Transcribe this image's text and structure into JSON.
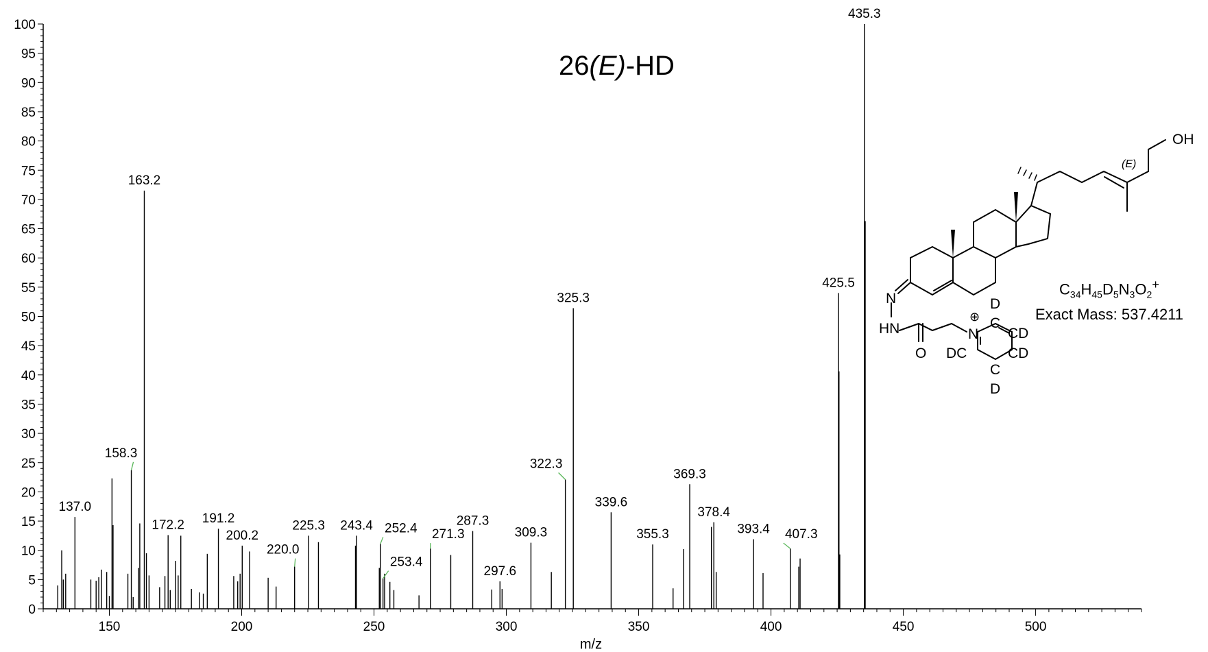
{
  "chart_data": {
    "type": "bar",
    "title_parts": {
      "prefix": "26",
      "italic": "(E)",
      "suffix": "-HD"
    },
    "xlabel": "m/z",
    "ylabel": "",
    "xlim": [
      125,
      540
    ],
    "ylim": [
      0,
      100
    ],
    "x_ticks": [
      150,
      200,
      250,
      300,
      350,
      400,
      450,
      500
    ],
    "y_ticks": [
      0,
      5,
      10,
      15,
      20,
      25,
      30,
      35,
      40,
      45,
      50,
      55,
      60,
      65,
      70,
      75,
      80,
      85,
      90,
      95,
      100
    ],
    "grid": false,
    "peaks": [
      {
        "x": 130.5,
        "y": 4
      },
      {
        "x": 132.0,
        "y": 10
      },
      {
        "x": 132.6,
        "y": 5
      },
      {
        "x": 133.5,
        "y": 6
      },
      {
        "x": 137.0,
        "y": 15.7,
        "label": "137.0"
      },
      {
        "x": 143.0,
        "y": 5
      },
      {
        "x": 145.0,
        "y": 4.8
      },
      {
        "x": 146.0,
        "y": 5.4
      },
      {
        "x": 147.0,
        "y": 6.7
      },
      {
        "x": 149.0,
        "y": 6.3
      },
      {
        "x": 150.0,
        "y": 2.2
      },
      {
        "x": 151.0,
        "y": 22.3
      },
      {
        "x": 151.4,
        "y": 14.3
      },
      {
        "x": 157.0,
        "y": 6
      },
      {
        "x": 158.3,
        "y": 23.7,
        "label": "158.3"
      },
      {
        "x": 159.0,
        "y": 2
      },
      {
        "x": 161.0,
        "y": 7
      },
      {
        "x": 161.5,
        "y": 14.6
      },
      {
        "x": 163.2,
        "y": 71.5,
        "label": "163.2"
      },
      {
        "x": 164.0,
        "y": 9.5
      },
      {
        "x": 165.0,
        "y": 5.7
      },
      {
        "x": 169.0,
        "y": 3.7
      },
      {
        "x": 171.0,
        "y": 5.6
      },
      {
        "x": 172.2,
        "y": 12.6,
        "label": "172.2"
      },
      {
        "x": 173.0,
        "y": 3.2
      },
      {
        "x": 175.0,
        "y": 8.2
      },
      {
        "x": 176.0,
        "y": 5.7
      },
      {
        "x": 177.0,
        "y": 12.5
      },
      {
        "x": 181.0,
        "y": 3.4
      },
      {
        "x": 184.0,
        "y": 2.8
      },
      {
        "x": 185.5,
        "y": 2.6
      },
      {
        "x": 187.0,
        "y": 9.4
      },
      {
        "x": 191.2,
        "y": 13.7,
        "label": "191.2"
      },
      {
        "x": 197.0,
        "y": 5.6
      },
      {
        "x": 198.5,
        "y": 4.7
      },
      {
        "x": 199.4,
        "y": 6
      },
      {
        "x": 200.2,
        "y": 10.8,
        "label": "200.2"
      },
      {
        "x": 203.0,
        "y": 9.8
      },
      {
        "x": 210.0,
        "y": 5.3
      },
      {
        "x": 213.0,
        "y": 3.8
      },
      {
        "x": 220.0,
        "y": 7.2,
        "label": "220.0"
      },
      {
        "x": 225.3,
        "y": 12.5,
        "label": "225.3"
      },
      {
        "x": 229.0,
        "y": 11.4
      },
      {
        "x": 243.0,
        "y": 10.8
      },
      {
        "x": 243.4,
        "y": 12.5,
        "label": "243.4"
      },
      {
        "x": 252.0,
        "y": 7
      },
      {
        "x": 252.4,
        "y": 11.1,
        "label": "252.4"
      },
      {
        "x": 253.4,
        "y": 5.2,
        "label": "253.4"
      },
      {
        "x": 254.0,
        "y": 6
      },
      {
        "x": 256.0,
        "y": 4.6
      },
      {
        "x": 257.5,
        "y": 3.2
      },
      {
        "x": 267.0,
        "y": 2.3
      },
      {
        "x": 271.3,
        "y": 10.3,
        "label": "271.3"
      },
      {
        "x": 279.0,
        "y": 9.2
      },
      {
        "x": 287.3,
        "y": 13.3,
        "label": "287.3"
      },
      {
        "x": 294.5,
        "y": 3.3
      },
      {
        "x": 297.6,
        "y": 4.7,
        "label": "297.6"
      },
      {
        "x": 298.4,
        "y": 3.4
      },
      {
        "x": 309.3,
        "y": 11.3,
        "label": "309.3"
      },
      {
        "x": 317.0,
        "y": 6.3
      },
      {
        "x": 322.3,
        "y": 22.1,
        "label": "322.3"
      },
      {
        "x": 325.3,
        "y": 51.4,
        "label": "325.3"
      },
      {
        "x": 339.6,
        "y": 16.5,
        "label": "339.6"
      },
      {
        "x": 355.3,
        "y": 11,
        "label": "355.3"
      },
      {
        "x": 363.0,
        "y": 3.5
      },
      {
        "x": 367.0,
        "y": 10.2
      },
      {
        "x": 369.3,
        "y": 21.3,
        "label": "369.3"
      },
      {
        "x": 377.5,
        "y": 14
      },
      {
        "x": 378.4,
        "y": 14.8,
        "label": "378.4"
      },
      {
        "x": 379.3,
        "y": 6.3
      },
      {
        "x": 393.4,
        "y": 11.9,
        "label": "393.4"
      },
      {
        "x": 397.0,
        "y": 6.1
      },
      {
        "x": 407.3,
        "y": 10.3,
        "label": "407.3"
      },
      {
        "x": 410.5,
        "y": 7.2
      },
      {
        "x": 411.0,
        "y": 8.6
      },
      {
        "x": 425.5,
        "y": 54,
        "label": "425.5"
      },
      {
        "x": 425.7,
        "y": 40.6
      },
      {
        "x": 426.0,
        "y": 9.3
      },
      {
        "x": 435.3,
        "y": 100,
        "label": "435.3"
      },
      {
        "x": 435.6,
        "y": 66.3
      }
    ],
    "annotations": {
      "formula": {
        "C": "C",
        "C_n": "34",
        "H": "H",
        "H_n": "45",
        "D": "D",
        "D_n": "5",
        "N": "N",
        "N_n": "3",
        "O": "O",
        "O_n": "2",
        "charge": "+"
      },
      "exact_mass": "Exact Mass: 537.4211",
      "structure_labels": {
        "hydroxyl": "OH",
        "stereo": "(E)",
        "imine_n": "N",
        "hydrazide_nh": "HN",
        "carbonyl_o": "O",
        "pyridinium_n": "N",
        "charge_symbol": "⊕",
        "ring_c_top": "C",
        "ring_c_bottom": "C",
        "deuterium_top": "D",
        "deuterium_bottom": "D",
        "ring_cd_upper": "CD",
        "ring_cd_lower": "CD",
        "ring_dc": "DC"
      }
    }
  }
}
